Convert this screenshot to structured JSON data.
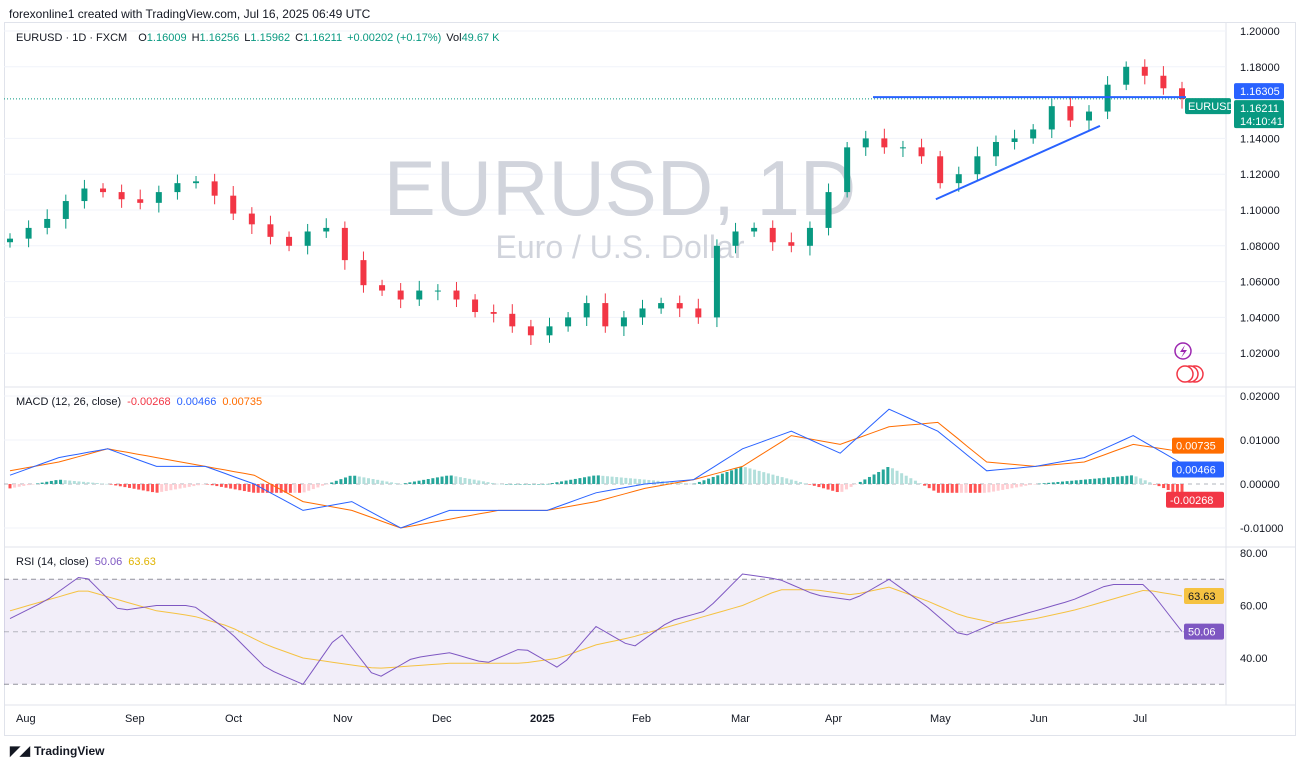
{
  "credit": "forexonline1 created with TradingView.com, Jul 16, 2025 06:49 UTC",
  "header": {
    "symbol": "EURUSD · 1D · FXCM",
    "o_label": "O",
    "o": "1.16009",
    "h_label": "H",
    "h": "1.16256",
    "l_label": "L",
    "l": "1.15962",
    "c_label": "C",
    "c": "1.16211",
    "change": "+0.00202 (+0.17%)",
    "vol_label": "Vol",
    "vol": "49.67 K"
  },
  "watermark": {
    "title": "EURUSD, 1D",
    "subtitle": "Euro / U.S. Dollar"
  },
  "colors": {
    "up": "#089981",
    "down": "#f23645",
    "macd": "#2962ff",
    "signal": "#ff6d00",
    "rsi": "#7e57c2",
    "rsi_ma": "#f5c242",
    "line": "#2962ff"
  },
  "chart_data": [
    {
      "type": "candlestick",
      "title": "EURUSD, 1D",
      "y_ticks": [
        "1.20000",
        "1.18000",
        "1.14000",
        "1.12000",
        "1.10000",
        "1.08000",
        "1.06000",
        "1.04000",
        "1.02000"
      ],
      "ylim": [
        1.0,
        1.2
      ],
      "x_ticks": [
        "Aug",
        "Sep",
        "Oct",
        "Nov",
        "Dec",
        "2025",
        "Feb",
        "Mar",
        "Apr",
        "May",
        "Jun",
        "Jul"
      ],
      "closes": [
        1.084,
        1.09,
        1.095,
        1.105,
        1.112,
        1.11,
        1.106,
        1.104,
        1.11,
        1.115,
        1.116,
        1.108,
        1.098,
        1.092,
        1.085,
        1.08,
        1.088,
        1.09,
        1.072,
        1.058,
        1.055,
        1.05,
        1.055,
        1.055,
        1.05,
        1.043,
        1.042,
        1.035,
        1.03,
        1.035,
        1.04,
        1.048,
        1.035,
        1.04,
        1.045,
        1.048,
        1.045,
        1.04,
        1.08,
        1.088,
        1.09,
        1.082,
        1.08,
        1.09,
        1.11,
        1.135,
        1.14,
        1.135,
        1.135,
        1.13,
        1.115,
        1.12,
        1.13,
        1.138,
        1.14,
        1.145,
        1.158,
        1.15,
        1.155,
        1.17,
        1.18,
        1.175,
        1.168,
        1.162
      ],
      "price_labels": {
        "resistance": "1.16305",
        "last": "1.16211",
        "countdown": "14:10:41",
        "symbol_tag": "EURUSD"
      },
      "resistance_level": 1.16305,
      "trendline": [
        [
          1.106,
          0.79
        ],
        [
          1.147,
          0.93
        ]
      ]
    },
    {
      "type": "line",
      "title": "MACD (12, 26, close)",
      "legend": [
        "-0.00268",
        "0.00466",
        "0.00735"
      ],
      "y_ticks": [
        "0.02000",
        "0.01000",
        "0.00000",
        "-0.01000"
      ],
      "ylim": [
        -0.012,
        0.022
      ],
      "series": [
        {
          "name": "MACD",
          "values": [
            0.002,
            0.006,
            0.008,
            0.004,
            0.004,
            0.0,
            -0.006,
            -0.004,
            -0.01,
            -0.006,
            -0.006,
            -0.006,
            -0.002,
            0.0,
            0.001,
            0.008,
            0.012,
            0.007,
            0.017,
            0.012,
            0.003,
            0.004,
            0.006,
            0.011,
            0.00466
          ]
        },
        {
          "name": "Signal",
          "values": [
            0.003,
            0.005,
            0.008,
            0.006,
            0.004,
            0.002,
            -0.004,
            -0.006,
            -0.01,
            -0.008,
            -0.006,
            -0.006,
            -0.004,
            -0.001,
            0.001,
            0.004,
            0.011,
            0.009,
            0.013,
            0.014,
            0.005,
            0.004,
            0.005,
            0.009,
            0.00735
          ]
        }
      ],
      "last_labels": {
        "signal": "0.00735",
        "macd": "0.00466",
        "hist": "-0.00268"
      }
    },
    {
      "type": "line",
      "title": "RSI (14, close)",
      "legend": [
        "50.06",
        "63.63"
      ],
      "y_ticks": [
        "80.00",
        "60.00",
        "40.00"
      ],
      "ylim": [
        25,
        85
      ],
      "bands": [
        30,
        50,
        70
      ],
      "series": [
        {
          "name": "RSI",
          "values": [
            55,
            62,
            72,
            58,
            60,
            60,
            50,
            36,
            30,
            50,
            32,
            40,
            42,
            38,
            44,
            36,
            52,
            44,
            54,
            58,
            72,
            70,
            64,
            62,
            70,
            60,
            48,
            54,
            58,
            62,
            68,
            68,
            50.06
          ]
        },
        {
          "name": "RSI MA",
          "values": [
            58,
            62,
            66,
            62,
            58,
            56,
            52,
            45,
            40,
            38,
            36,
            37,
            38,
            38,
            38,
            40,
            45,
            48,
            52,
            56,
            60,
            66,
            66,
            64,
            67,
            62,
            56,
            53,
            55,
            58,
            62,
            66,
            63.63
          ]
        }
      ],
      "last_labels": {
        "ma": "63.63",
        "rsi": "50.06"
      }
    }
  ],
  "footer": {
    "brand": "TradingView"
  }
}
